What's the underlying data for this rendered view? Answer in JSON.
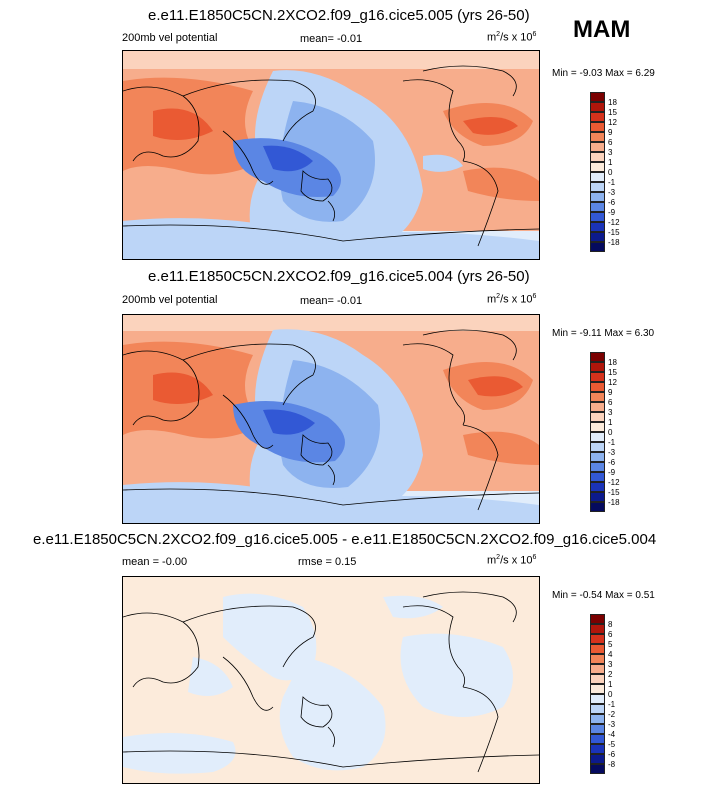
{
  "season": "MAM",
  "unit_base": "m",
  "unit_exp1": "2",
  "unit_mid": "/s x 10",
  "unit_exp2": "6",
  "panels": [
    {
      "title": "e.e11.E1850C5CN.2XCO2.f09_g16.cice5.005 (yrs 26-50)",
      "field": "200mb vel potential",
      "mean_text": "mean=  -0.01",
      "minmax": "Min = -9.03 Max =  6.29",
      "levels": [
        "18",
        "15",
        "12",
        "9",
        "6",
        "3",
        "1",
        "0",
        "-1",
        "-3",
        "-6",
        "-9",
        "-12",
        "-15",
        "-18"
      ]
    },
    {
      "title": "e.e11.E1850C5CN.2XCO2.f09_g16.cice5.004 (yrs 26-50)",
      "field": "200mb vel potential",
      "mean_text": "mean=  -0.01",
      "minmax": "Min = -9.11 Max =  6.30",
      "levels": [
        "18",
        "15",
        "12",
        "9",
        "6",
        "3",
        "1",
        "0",
        "-1",
        "-3",
        "-6",
        "-9",
        "-12",
        "-15",
        "-18"
      ]
    },
    {
      "title": "e.e11.E1850C5CN.2XCO2.f09_g16.cice5.005 - e.e11.E1850C5CN.2XCO2.f09_g16.cice5.004",
      "mean_text": "mean =  -0.00",
      "rmse_text": "rmse =   0.15",
      "minmax": "Min = -0.54 Max =  0.51",
      "levels": [
        "8",
        "6",
        "5",
        "4",
        "3",
        "2",
        "1",
        "0",
        "-1",
        "-2",
        "-3",
        "-4",
        "-5",
        "-6",
        "-8"
      ]
    }
  ],
  "colorbar_colors": [
    "#7a0000",
    "#b0160b",
    "#d6321c",
    "#ea5a33",
    "#f28559",
    "#f7ad8c",
    "#fbd3bd",
    "#fcebdb",
    "#e1edfb",
    "#bcd5f7",
    "#8db3ef",
    "#5b86e4",
    "#3258d5",
    "#1a33b8",
    "#0c1a8c",
    "#050a5e"
  ]
}
